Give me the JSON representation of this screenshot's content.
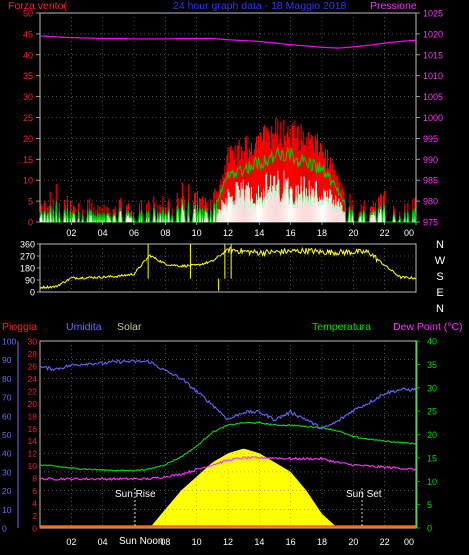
{
  "weather_station": {
    "top_panel": {
      "title": "24 hour graph data - 18 Maggio 2018",
      "left_label": "Forza vento(",
      "right_label": "Pressione",
      "left_ticks": [
        "0",
        "5",
        "10",
        "15",
        "20",
        "25",
        "30",
        "35",
        "40",
        "45",
        "50"
      ],
      "right_ticks": [
        "975",
        "980",
        "985",
        "990",
        "995",
        "1000",
        "1005",
        "1010",
        "1015",
        "1020",
        "1025"
      ],
      "x_ticks": [
        "02",
        "04",
        "06",
        "08",
        "10",
        "12",
        "14",
        "16",
        "18",
        "20",
        "22",
        "00"
      ]
    },
    "mid_panel": {
      "left_ticks": [
        "0",
        "90",
        "180",
        "270",
        "360"
      ],
      "compass": [
        "N",
        "W",
        "S",
        "E",
        "N"
      ],
      "x_ticks": [
        "02",
        "04",
        "06",
        "08",
        "10",
        "12",
        "14",
        "16",
        "18",
        "20",
        "22",
        "00"
      ]
    },
    "bottom_panel": {
      "label_rain": "Pioggia",
      "label_humidity": "Umidita",
      "label_solar": "Solar",
      "label_temp": "Temperatura",
      "label_dew": "Dew Point (°C)",
      "humidity_ticks": [
        "0",
        "10",
        "20",
        "30",
        "40",
        "50",
        "60",
        "70",
        "80",
        "90",
        "100"
      ],
      "rain_ticks": [
        "0",
        "2",
        "4",
        "6",
        "8",
        "10",
        "12",
        "14",
        "16",
        "18",
        "20",
        "22",
        "24",
        "26",
        "28",
        "30"
      ],
      "temp_ticks": [
        "0",
        "5",
        "10",
        "15",
        "20",
        "25",
        "30",
        "35",
        "40"
      ],
      "x_ticks": [
        "02",
        "04",
        "06",
        "08",
        "10",
        "12",
        "14",
        "16",
        "18",
        "20",
        "22",
        "00"
      ],
      "sun_rise": "Sun Rise",
      "sun_set": "Sun Set",
      "sun_noon": "Sun Noon"
    }
  },
  "colors": {
    "wind_gust": "#ff0000",
    "wind_avg": "#00cc00",
    "wind_speed": "#ffffff",
    "wind_lull": "#a0ffc0",
    "pressure": "#ff00ff",
    "direction": "#ffff00",
    "humidity": "#6666ff",
    "solar": "#ffff00",
    "temperature": "#00dd00",
    "dew_point": "#ff33ff",
    "rain": "#ff0000",
    "grid": "#888888"
  },
  "chart_data": [
    {
      "type": "line",
      "x": [
        0,
        1,
        2,
        3,
        4,
        5,
        6,
        7,
        8,
        9,
        10,
        11,
        12,
        13,
        14,
        15,
        16,
        17,
        18,
        19,
        20,
        21,
        22,
        23,
        24
      ],
      "series": [
        {
          "name": "Forza vento",
          "values": [
            2,
            5,
            3,
            4,
            2,
            3,
            2,
            4,
            3,
            5,
            4,
            3,
            15,
            17,
            19,
            21,
            21,
            19,
            17,
            10,
            2,
            3,
            4,
            3,
            3
          ]
        },
        {
          "name": "Pressione",
          "values": [
            1019.5,
            1019.3,
            1019.1,
            1019,
            1018.9,
            1018.9,
            1018.8,
            1018.8,
            1018.8,
            1018.9,
            1018.9,
            1018.9,
            1018.6,
            1018.4,
            1018.2,
            1017.8,
            1017.4,
            1017.1,
            1016.8,
            1016.6,
            1016.9,
            1017.3,
            1017.8,
            1018.2,
            1018.5
          ]
        }
      ],
      "ylim": [
        0,
        50
      ],
      "y2lim": [
        975,
        1025
      ]
    },
    {
      "type": "line",
      "x": [
        0,
        1,
        2,
        3,
        4,
        5,
        6,
        7,
        8,
        9,
        10,
        11,
        12,
        13,
        14,
        15,
        16,
        17,
        18,
        19,
        20,
        21,
        22,
        23,
        24
      ],
      "series": [
        {
          "name": "direction",
          "values": [
            35,
            40,
            105,
            108,
            112,
            118,
            135,
            275,
            210,
            195,
            200,
            230,
            320,
            305,
            295,
            300,
            305,
            310,
            300,
            298,
            300,
            298,
            200,
            110,
            105
          ]
        }
      ],
      "ylim": [
        0,
        360
      ]
    },
    {
      "type": "line",
      "x": [
        0,
        1,
        2,
        3,
        4,
        5,
        6,
        7,
        8,
        9,
        10,
        11,
        12,
        13,
        14,
        15,
        16,
        17,
        18,
        19,
        20,
        21,
        22,
        23,
        24
      ],
      "series": [
        {
          "name": "Umidita",
          "values": [
            86,
            85,
            87,
            88,
            88,
            89,
            89,
            89,
            84,
            80,
            73,
            66,
            58,
            62,
            62,
            58,
            62,
            58,
            53,
            57,
            63,
            67,
            72,
            74,
            74
          ]
        },
        {
          "name": "Solar",
          "values": [
            0,
            0,
            0,
            0,
            0,
            0,
            0,
            0,
            4,
            8,
            11,
            14,
            16,
            17,
            16,
            14,
            12,
            8,
            3,
            0,
            0,
            0,
            0,
            0,
            0
          ]
        },
        {
          "name": "Temperatura",
          "values": [
            13.5,
            13.2,
            12.8,
            12.6,
            12.4,
            12.3,
            12.3,
            12.6,
            13.6,
            15.2,
            17.5,
            20.5,
            22,
            22.5,
            22.5,
            22,
            22,
            21.7,
            21.5,
            20.8,
            19.5,
            19,
            18.6,
            18.3,
            18
          ]
        },
        {
          "name": "Dew Point",
          "values": [
            10.5,
            10.5,
            10.5,
            10.5,
            10.5,
            10.5,
            10.5,
            10.5,
            11,
            11.5,
            12.5,
            13.5,
            14.5,
            15,
            15,
            15,
            14.8,
            14.8,
            14.8,
            14,
            13.5,
            13.2,
            13,
            12.8,
            12.5
          ]
        },
        {
          "name": "Pioggia",
          "values": [
            0,
            0,
            0,
            0,
            0,
            0,
            0,
            0,
            0,
            0,
            0,
            0,
            0,
            0,
            0,
            0,
            0,
            0,
            0,
            0,
            0,
            0,
            0,
            0,
            0
          ]
        }
      ],
      "ylim": [
        0,
        100
      ],
      "y2lim": [
        0,
        40
      ]
    }
  ]
}
